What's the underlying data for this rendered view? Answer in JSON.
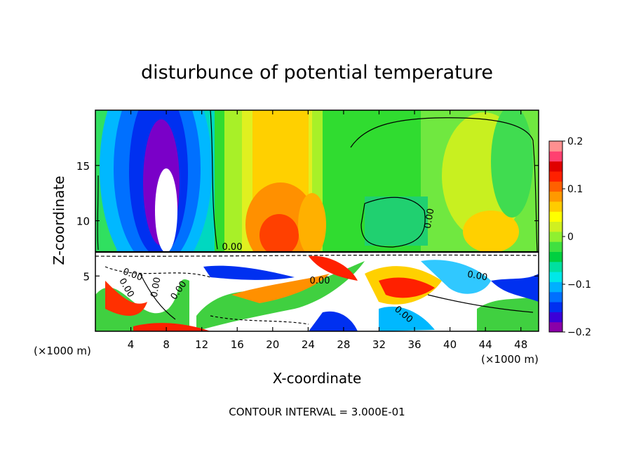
{
  "chart_data": {
    "type": "heatmap",
    "title": "disturbunce of potential temperature",
    "xlabel": "X-coordinate",
    "ylabel": "Z-coordinate",
    "x_unit_note_left": "(×1000 m)",
    "x_unit_note_right": "(×1000 m)",
    "footer": "CONTOUR INTERVAL = 3.000E-01",
    "xlim": [
      0,
      50
    ],
    "ylim": [
      0,
      20
    ],
    "x_ticks": [
      4,
      8,
      12,
      16,
      20,
      24,
      28,
      32,
      36,
      40,
      44,
      48
    ],
    "y_ticks": [
      5,
      10,
      15
    ],
    "colorbar": {
      "min": -0.2,
      "max": 0.2,
      "tick_values": [
        0.2,
        0.1,
        0,
        -0.1,
        -0.2
      ],
      "tick_labels": [
        "0.2",
        "0.1",
        "0",
        "−0.1",
        "−0.2"
      ],
      "colors": [
        "#8a00a8",
        "#3b00d8",
        "#0030f0",
        "#0070ff",
        "#00b0ff",
        "#00e8e8",
        "#00e0a0",
        "#00d040",
        "#40e040",
        "#90f030",
        "#d0f020",
        "#ffff00",
        "#ffcc00",
        "#ff9900",
        "#ff6000",
        "#ff2000",
        "#e00000",
        "#ff4070",
        "#ff9090"
      ]
    },
    "contour_labels": [
      "0.00",
      "0.00",
      "0.00",
      "0.00",
      "0.00",
      "0.00",
      "0.00",
      "0.00",
      "0.00"
    ]
  }
}
